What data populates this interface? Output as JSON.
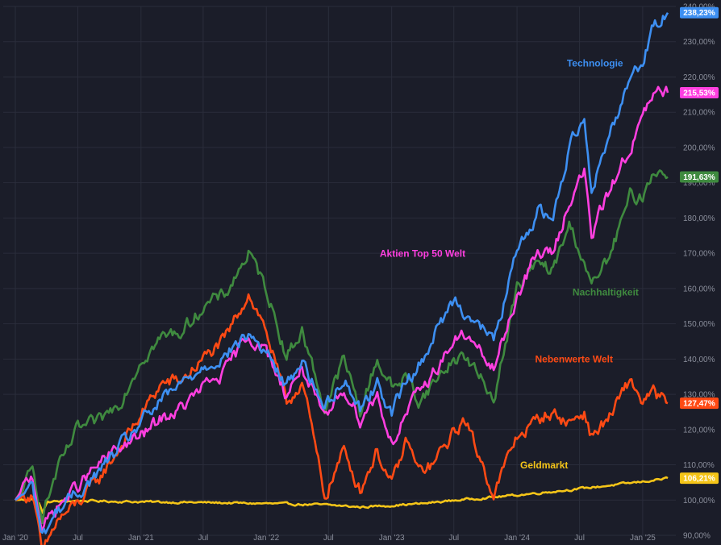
{
  "chart_data": {
    "type": "line",
    "title": "",
    "xlabel": "",
    "ylabel": "",
    "ylim": [
      90,
      240
    ],
    "y_unit": "%",
    "grid": true,
    "legend": "inline-labels",
    "x_ticks": [
      {
        "date": "2020-01-01",
        "label": "Jan '20"
      },
      {
        "date": "2020-07-01",
        "label": "Jul"
      },
      {
        "date": "2021-01-01",
        "label": "Jan '21"
      },
      {
        "date": "2021-07-01",
        "label": "Jul"
      },
      {
        "date": "2022-01-01",
        "label": "Jan '22"
      },
      {
        "date": "2022-07-01",
        "label": "Jul"
      },
      {
        "date": "2023-01-01",
        "label": "Jan '23"
      },
      {
        "date": "2023-07-01",
        "label": "Jul"
      },
      {
        "date": "2024-01-01",
        "label": "Jan '24"
      },
      {
        "date": "2024-07-01",
        "label": "Jul"
      },
      {
        "date": "2025-01-01",
        "label": "Jan '25"
      }
    ],
    "y_ticks": [
      "90,00%",
      "100,00%",
      "110,00%",
      "120,00%",
      "130,00%",
      "140,00%",
      "150,00%",
      "160,00%",
      "170,00%",
      "180,00%",
      "190,00%",
      "200,00%",
      "210,00%",
      "220,00%",
      "230,00%",
      "240,00%"
    ],
    "y_tick_values": [
      90,
      100,
      110,
      120,
      130,
      140,
      150,
      160,
      170,
      180,
      190,
      200,
      210,
      220,
      230,
      240
    ],
    "series": [
      {
        "name": "Geldmarkt",
        "color": "#f5c518",
        "last_label": "106,21%",
        "last_value": 106.21,
        "points": [
          [
            "2020-01-01",
            100
          ],
          [
            "2020-02-20",
            100.2
          ],
          [
            "2020-03-10",
            99.0
          ],
          [
            "2020-03-20",
            96.5
          ],
          [
            "2020-04-05",
            99.5
          ],
          [
            "2020-07-01",
            99.8
          ],
          [
            "2021-01-01",
            99.5
          ],
          [
            "2021-07-01",
            99.3
          ],
          [
            "2022-01-01",
            99.0
          ],
          [
            "2022-07-01",
            98.6
          ],
          [
            "2022-10-01",
            98.0
          ],
          [
            "2023-01-01",
            98.5
          ],
          [
            "2023-04-01",
            99.0
          ],
          [
            "2023-07-01",
            99.9
          ],
          [
            "2024-01-01",
            101.4
          ],
          [
            "2024-07-01",
            103.2
          ],
          [
            "2025-01-01",
            105.2
          ],
          [
            "2025-03-15",
            106.21
          ]
        ]
      },
      {
        "name": "Nebenwerte Welt",
        "color": "#ff4a14",
        "last_label": "127,47%",
        "last_value": 127.47,
        "points": [
          [
            "2020-01-01",
            100
          ],
          [
            "2020-02-20",
            102
          ],
          [
            "2020-03-20",
            84
          ],
          [
            "2020-05-01",
            94
          ],
          [
            "2020-07-01",
            99
          ],
          [
            "2020-09-01",
            106
          ],
          [
            "2020-11-01",
            115
          ],
          [
            "2021-01-01",
            124
          ],
          [
            "2021-03-01",
            133
          ],
          [
            "2021-05-01",
            134
          ],
          [
            "2021-07-01",
            140
          ],
          [
            "2021-09-01",
            145
          ],
          [
            "2021-11-10",
            159
          ],
          [
            "2022-01-01",
            148
          ],
          [
            "2022-03-01",
            127
          ],
          [
            "2022-04-15",
            134
          ],
          [
            "2022-06-20",
            101
          ],
          [
            "2022-08-15",
            114
          ],
          [
            "2022-10-01",
            103
          ],
          [
            "2022-11-20",
            114
          ],
          [
            "2023-01-01",
            104
          ],
          [
            "2023-02-15",
            117
          ],
          [
            "2023-03-20",
            108
          ],
          [
            "2023-05-01",
            110
          ],
          [
            "2023-07-01",
            119
          ],
          [
            "2023-08-01",
            123
          ],
          [
            "2023-10-25",
            102
          ],
          [
            "2024-01-01",
            118
          ],
          [
            "2024-04-01",
            125
          ],
          [
            "2024-06-01",
            122
          ],
          [
            "2024-07-15",
            125
          ],
          [
            "2024-08-05",
            118
          ],
          [
            "2024-10-01",
            124
          ],
          [
            "2024-11-25",
            134
          ],
          [
            "2025-01-01",
            128
          ],
          [
            "2025-02-01",
            130
          ],
          [
            "2025-03-15",
            127.47
          ]
        ]
      },
      {
        "name": "Nachhaltigkeit",
        "color": "#3f8a3f",
        "last_label": "191,63%",
        "last_value": 191.63,
        "points": [
          [
            "2020-01-01",
            100
          ],
          [
            "2020-02-20",
            108
          ],
          [
            "2020-03-20",
            96
          ],
          [
            "2020-05-01",
            108
          ],
          [
            "2020-07-01",
            120
          ],
          [
            "2020-09-01",
            122
          ],
          [
            "2020-11-01",
            128
          ],
          [
            "2021-01-01",
            140
          ],
          [
            "2021-03-01",
            146
          ],
          [
            "2021-05-01",
            148
          ],
          [
            "2021-07-01",
            155
          ],
          [
            "2021-09-01",
            158
          ],
          [
            "2021-11-10",
            170
          ],
          [
            "2022-01-01",
            160
          ],
          [
            "2022-03-01",
            141
          ],
          [
            "2022-04-15",
            148
          ],
          [
            "2022-06-20",
            126
          ],
          [
            "2022-08-15",
            140
          ],
          [
            "2022-10-01",
            125
          ],
          [
            "2022-11-20",
            140
          ],
          [
            "2023-01-01",
            132
          ],
          [
            "2023-02-15",
            135
          ],
          [
            "2023-03-20",
            128
          ],
          [
            "2023-05-01",
            133
          ],
          [
            "2023-07-01",
            140
          ],
          [
            "2023-08-01",
            141
          ],
          [
            "2023-10-25",
            129
          ],
          [
            "2024-01-01",
            160
          ],
          [
            "2024-03-01",
            167
          ],
          [
            "2024-04-15",
            165
          ],
          [
            "2024-06-01",
            178
          ],
          [
            "2024-07-15",
            168
          ],
          [
            "2024-08-05",
            160
          ],
          [
            "2024-10-01",
            170
          ],
          [
            "2024-11-25",
            186
          ],
          [
            "2025-01-01",
            186
          ],
          [
            "2025-02-01",
            194
          ],
          [
            "2025-03-15",
            191.63
          ]
        ]
      },
      {
        "name": "Aktien Top 50 Welt",
        "color": "#ff3fe0",
        "last_label": "215,53%",
        "last_value": 215.53,
        "points": [
          [
            "2020-01-01",
            100
          ],
          [
            "2020-02-20",
            107
          ],
          [
            "2020-03-20",
            92
          ],
          [
            "2020-05-01",
            98
          ],
          [
            "2020-07-01",
            104
          ],
          [
            "2020-09-01",
            110
          ],
          [
            "2020-11-01",
            115
          ],
          [
            "2021-01-01",
            118
          ],
          [
            "2021-03-01",
            123
          ],
          [
            "2021-05-01",
            126
          ],
          [
            "2021-07-01",
            132
          ],
          [
            "2021-09-01",
            136
          ],
          [
            "2021-11-10",
            147
          ],
          [
            "2022-01-01",
            142
          ],
          [
            "2022-03-01",
            130
          ],
          [
            "2022-04-15",
            138
          ],
          [
            "2022-06-20",
            122
          ],
          [
            "2022-08-15",
            132
          ],
          [
            "2022-10-01",
            123
          ],
          [
            "2022-11-20",
            130
          ],
          [
            "2023-01-01",
            116
          ],
          [
            "2023-02-15",
            125
          ],
          [
            "2023-03-20",
            130
          ],
          [
            "2023-05-01",
            136
          ],
          [
            "2023-07-01",
            145
          ],
          [
            "2023-08-01",
            147
          ],
          [
            "2023-10-25",
            137
          ],
          [
            "2024-01-01",
            158
          ],
          [
            "2024-03-01",
            170
          ],
          [
            "2024-04-15",
            170
          ],
          [
            "2024-06-01",
            185
          ],
          [
            "2024-07-15",
            193
          ],
          [
            "2024-08-05",
            175
          ],
          [
            "2024-10-01",
            189
          ],
          [
            "2024-11-25",
            200
          ],
          [
            "2025-01-01",
            208
          ],
          [
            "2025-02-01",
            215
          ],
          [
            "2025-03-15",
            215.53
          ]
        ]
      },
      {
        "name": "Technologie",
        "color": "#3d8ff2",
        "last_label": "238,23%",
        "last_value": 238.23,
        "points": [
          [
            "2020-01-01",
            100
          ],
          [
            "2020-02-20",
            104
          ],
          [
            "2020-03-20",
            90
          ],
          [
            "2020-05-01",
            97
          ],
          [
            "2020-07-01",
            102
          ],
          [
            "2020-09-01",
            108
          ],
          [
            "2020-11-01",
            115
          ],
          [
            "2021-01-01",
            122
          ],
          [
            "2021-03-01",
            128
          ],
          [
            "2021-05-01",
            133
          ],
          [
            "2021-07-01",
            138
          ],
          [
            "2021-09-01",
            141
          ],
          [
            "2021-11-10",
            147
          ],
          [
            "2022-01-01",
            142
          ],
          [
            "2022-03-01",
            132
          ],
          [
            "2022-04-15",
            140
          ],
          [
            "2022-06-20",
            126
          ],
          [
            "2022-08-15",
            135
          ],
          [
            "2022-10-01",
            126
          ],
          [
            "2022-11-20",
            133
          ],
          [
            "2023-01-01",
            125
          ],
          [
            "2023-02-15",
            134
          ],
          [
            "2023-03-20",
            138
          ],
          [
            "2023-05-01",
            146
          ],
          [
            "2023-07-01",
            157
          ],
          [
            "2023-08-01",
            154
          ],
          [
            "2023-10-25",
            145
          ],
          [
            "2024-01-01",
            170
          ],
          [
            "2024-03-01",
            182
          ],
          [
            "2024-04-15",
            180
          ],
          [
            "2024-06-01",
            200
          ],
          [
            "2024-07-15",
            210
          ],
          [
            "2024-08-05",
            188
          ],
          [
            "2024-10-01",
            205
          ],
          [
            "2024-11-25",
            220
          ],
          [
            "2025-01-01",
            225
          ],
          [
            "2025-02-01",
            234
          ],
          [
            "2025-03-15",
            238.23
          ]
        ]
      }
    ],
    "annotations": [
      {
        "text": "Technologie",
        "series": "Technologie",
        "at": [
          "2024-08-15",
          223
        ]
      },
      {
        "text": "Aktien Top 50 Welt",
        "series": "Aktien Top 50 Welt",
        "at": [
          "2023-04-01",
          169
        ]
      },
      {
        "text": "Nachhaltigkeit",
        "series": "Nachhaltigkeit",
        "at": [
          "2024-09-15",
          158
        ]
      },
      {
        "text": "Nebenwerte Welt",
        "series": "Nebenwerte Welt",
        "at": [
          "2024-06-15",
          139
        ]
      },
      {
        "text": "Geldmarkt",
        "series": "Geldmarkt",
        "at": [
          "2024-03-20",
          109
        ]
      }
    ]
  }
}
